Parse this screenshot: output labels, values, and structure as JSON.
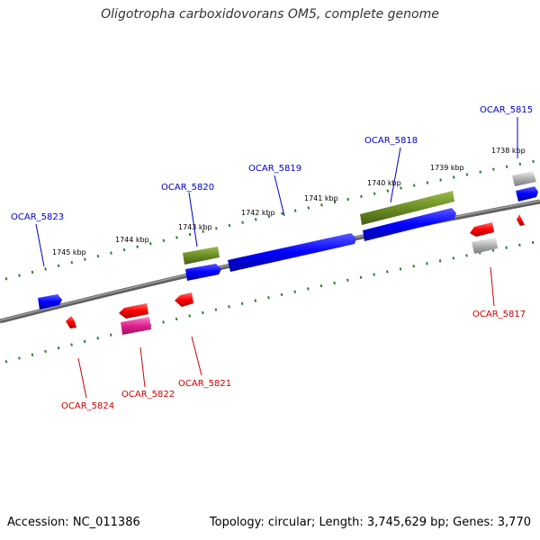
{
  "title": "Oligotropha carboxidovorans OM5, complete genome",
  "accession": "Accession: NC_011386",
  "topology": "Topology: circular; Length: 3,745,629 bp; Genes: 3,770",
  "kbp_ticks": [
    "1738 kbp",
    "1739 kbp",
    "1740 kbp",
    "1741 kbp",
    "1742 kbp",
    "1743 kbp",
    "1744 kbp",
    "1745 kbp"
  ],
  "gene_labels": {
    "g5815": "OCAR_5815",
    "g5818": "OCAR_5818",
    "g5819": "OCAR_5819",
    "g5820": "OCAR_5820",
    "g5823": "OCAR_5823",
    "g5817": "OCAR_5817",
    "g5821": "OCAR_5821",
    "g5822": "OCAR_5822",
    "g5824": "OCAR_5824"
  },
  "colors": {
    "forward": "#0000ff",
    "reverse": "#ff0000",
    "olive": "#6b8e23",
    "gray": "#a9a9a9",
    "magenta": "#e0208f",
    "tick": "#2e7d32",
    "backbone": "#808080"
  }
}
